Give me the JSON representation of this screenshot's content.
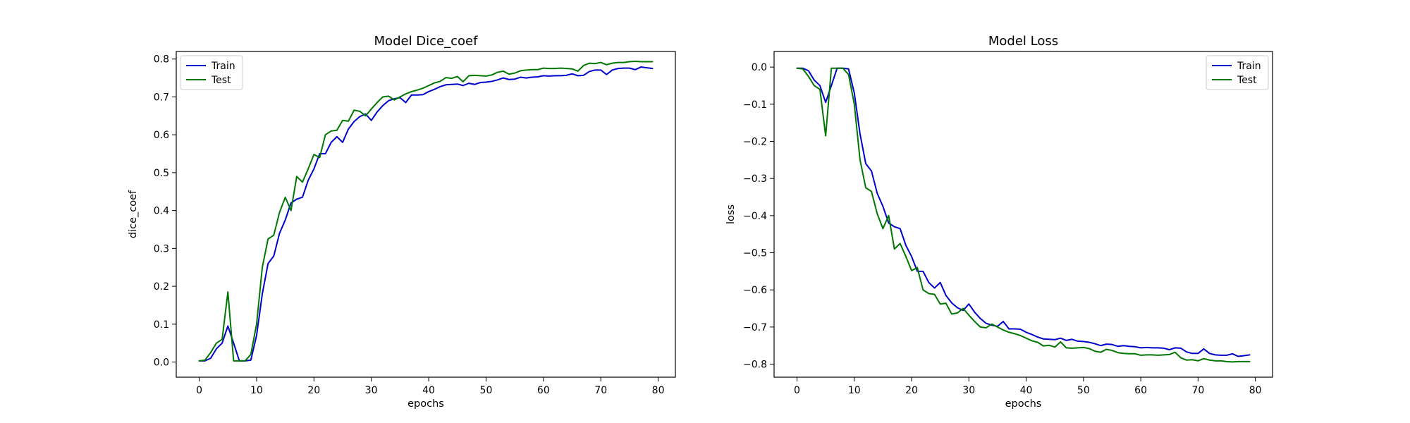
{
  "chart_data": [
    {
      "type": "line",
      "title": "Model Dice_coef",
      "xlabel": "epochs",
      "ylabel": "dice_coef",
      "xlim": [
        -4,
        83
      ],
      "ylim": [
        -0.04,
        0.82
      ],
      "xticks": [
        0,
        10,
        20,
        30,
        40,
        50,
        60,
        70,
        80
      ],
      "yticks": [
        0.0,
        0.1,
        0.2,
        0.3,
        0.4,
        0.5,
        0.6,
        0.7,
        0.8
      ],
      "ytick_labels": [
        "0.0",
        "0.1",
        "0.2",
        "0.3",
        "0.4",
        "0.5",
        "0.6",
        "0.7",
        "0.8"
      ],
      "grid": false,
      "legend": "upper-left",
      "x": [
        0,
        1,
        2,
        3,
        4,
        5,
        6,
        7,
        8,
        9,
        10,
        11,
        12,
        13,
        14,
        15,
        16,
        17,
        18,
        19,
        20,
        21,
        22,
        23,
        24,
        25,
        26,
        27,
        28,
        29,
        30,
        31,
        32,
        33,
        34,
        35,
        36,
        37,
        38,
        39,
        40,
        41,
        42,
        43,
        44,
        45,
        46,
        47,
        48,
        49,
        50,
        51,
        52,
        53,
        54,
        55,
        56,
        57,
        58,
        59,
        60,
        61,
        62,
        63,
        64,
        65,
        66,
        67,
        68,
        69,
        70,
        71,
        72,
        73,
        74,
        75,
        76,
        77,
        78,
        79
      ],
      "series": [
        {
          "name": "Train",
          "color": "#0000cc",
          "values": [
            0.003,
            0.003,
            0.01,
            0.035,
            0.05,
            0.095,
            0.05,
            0.003,
            0.003,
            0.005,
            0.07,
            0.18,
            0.26,
            0.28,
            0.34,
            0.375,
            0.42,
            0.43,
            0.435,
            0.48,
            0.51,
            0.55,
            0.55,
            0.58,
            0.595,
            0.58,
            0.615,
            0.635,
            0.648,
            0.655,
            0.638,
            0.66,
            0.677,
            0.69,
            0.695,
            0.698,
            0.685,
            0.705,
            0.705,
            0.706,
            0.714,
            0.72,
            0.727,
            0.732,
            0.733,
            0.734,
            0.73,
            0.736,
            0.733,
            0.738,
            0.739,
            0.741,
            0.745,
            0.75,
            0.746,
            0.747,
            0.752,
            0.75,
            0.752,
            0.753,
            0.756,
            0.755,
            0.756,
            0.756,
            0.757,
            0.761,
            0.756,
            0.757,
            0.767,
            0.771,
            0.771,
            0.759,
            0.771,
            0.775,
            0.776,
            0.776,
            0.772,
            0.779,
            0.777,
            0.775
          ]
        },
        {
          "name": "Test",
          "color": "#007700",
          "values": [
            0.003,
            0.005,
            0.025,
            0.05,
            0.06,
            0.185,
            0.003,
            0.003,
            0.003,
            0.02,
            0.1,
            0.25,
            0.325,
            0.335,
            0.395,
            0.435,
            0.4,
            0.49,
            0.475,
            0.51,
            0.548,
            0.54,
            0.6,
            0.61,
            0.612,
            0.638,
            0.636,
            0.665,
            0.662,
            0.65,
            0.668,
            0.685,
            0.7,
            0.702,
            0.692,
            0.7,
            0.708,
            0.714,
            0.718,
            0.723,
            0.73,
            0.737,
            0.741,
            0.751,
            0.749,
            0.754,
            0.74,
            0.756,
            0.757,
            0.756,
            0.755,
            0.758,
            0.765,
            0.768,
            0.76,
            0.763,
            0.769,
            0.771,
            0.772,
            0.772,
            0.776,
            0.775,
            0.775,
            0.776,
            0.775,
            0.774,
            0.768,
            0.783,
            0.789,
            0.788,
            0.791,
            0.785,
            0.789,
            0.791,
            0.791,
            0.793,
            0.794,
            0.793,
            0.793,
            0.793
          ]
        }
      ]
    },
    {
      "type": "line",
      "title": "Model Loss",
      "xlabel": "epochs",
      "ylabel": "loss",
      "xlim": [
        -4,
        83
      ],
      "ylim": [
        -0.835,
        0.042
      ],
      "xticks": [
        0,
        10,
        20,
        30,
        40,
        50,
        60,
        70,
        80
      ],
      "yticks": [
        0.0,
        -0.1,
        -0.2,
        -0.3,
        -0.4,
        -0.5,
        -0.6,
        -0.7,
        -0.8
      ],
      "ytick_labels": [
        "0.0",
        "−0.1",
        "−0.2",
        "−0.3",
        "−0.4",
        "−0.5",
        "−0.6",
        "−0.7",
        "−0.8"
      ],
      "grid": false,
      "legend": "upper-right",
      "x": [
        0,
        1,
        2,
        3,
        4,
        5,
        6,
        7,
        8,
        9,
        10,
        11,
        12,
        13,
        14,
        15,
        16,
        17,
        18,
        19,
        20,
        21,
        22,
        23,
        24,
        25,
        26,
        27,
        28,
        29,
        30,
        31,
        32,
        33,
        34,
        35,
        36,
        37,
        38,
        39,
        40,
        41,
        42,
        43,
        44,
        45,
        46,
        47,
        48,
        49,
        50,
        51,
        52,
        53,
        54,
        55,
        56,
        57,
        58,
        59,
        60,
        61,
        62,
        63,
        64,
        65,
        66,
        67,
        68,
        69,
        70,
        71,
        72,
        73,
        74,
        75,
        76,
        77,
        78,
        79
      ],
      "series": [
        {
          "name": "Train",
          "color": "#0000cc",
          "values": [
            -0.003,
            -0.003,
            -0.01,
            -0.035,
            -0.05,
            -0.095,
            -0.05,
            -0.003,
            -0.003,
            -0.005,
            -0.07,
            -0.18,
            -0.26,
            -0.28,
            -0.34,
            -0.375,
            -0.42,
            -0.43,
            -0.435,
            -0.48,
            -0.51,
            -0.55,
            -0.55,
            -0.58,
            -0.595,
            -0.58,
            -0.615,
            -0.635,
            -0.648,
            -0.655,
            -0.638,
            -0.66,
            -0.677,
            -0.69,
            -0.695,
            -0.698,
            -0.685,
            -0.705,
            -0.705,
            -0.706,
            -0.714,
            -0.72,
            -0.727,
            -0.732,
            -0.733,
            -0.734,
            -0.73,
            -0.736,
            -0.733,
            -0.738,
            -0.739,
            -0.741,
            -0.745,
            -0.75,
            -0.746,
            -0.747,
            -0.752,
            -0.75,
            -0.752,
            -0.753,
            -0.756,
            -0.755,
            -0.756,
            -0.756,
            -0.757,
            -0.761,
            -0.756,
            -0.757,
            -0.767,
            -0.771,
            -0.771,
            -0.759,
            -0.771,
            -0.775,
            -0.776,
            -0.776,
            -0.772,
            -0.779,
            -0.777,
            -0.775
          ]
        },
        {
          "name": "Test",
          "color": "#007700",
          "values": [
            -0.003,
            -0.005,
            -0.025,
            -0.05,
            -0.06,
            -0.185,
            -0.003,
            -0.003,
            -0.003,
            -0.02,
            -0.1,
            -0.25,
            -0.325,
            -0.335,
            -0.395,
            -0.435,
            -0.4,
            -0.49,
            -0.475,
            -0.51,
            -0.548,
            -0.54,
            -0.6,
            -0.61,
            -0.612,
            -0.638,
            -0.636,
            -0.665,
            -0.662,
            -0.65,
            -0.668,
            -0.685,
            -0.7,
            -0.702,
            -0.692,
            -0.7,
            -0.708,
            -0.714,
            -0.718,
            -0.723,
            -0.73,
            -0.737,
            -0.741,
            -0.751,
            -0.749,
            -0.754,
            -0.74,
            -0.756,
            -0.757,
            -0.756,
            -0.755,
            -0.758,
            -0.765,
            -0.768,
            -0.76,
            -0.763,
            -0.769,
            -0.771,
            -0.772,
            -0.772,
            -0.776,
            -0.775,
            -0.775,
            -0.776,
            -0.775,
            -0.774,
            -0.768,
            -0.783,
            -0.789,
            -0.788,
            -0.791,
            -0.785,
            -0.789,
            -0.791,
            -0.791,
            -0.793,
            -0.794,
            -0.793,
            -0.793,
            -0.793
          ]
        }
      ]
    }
  ]
}
